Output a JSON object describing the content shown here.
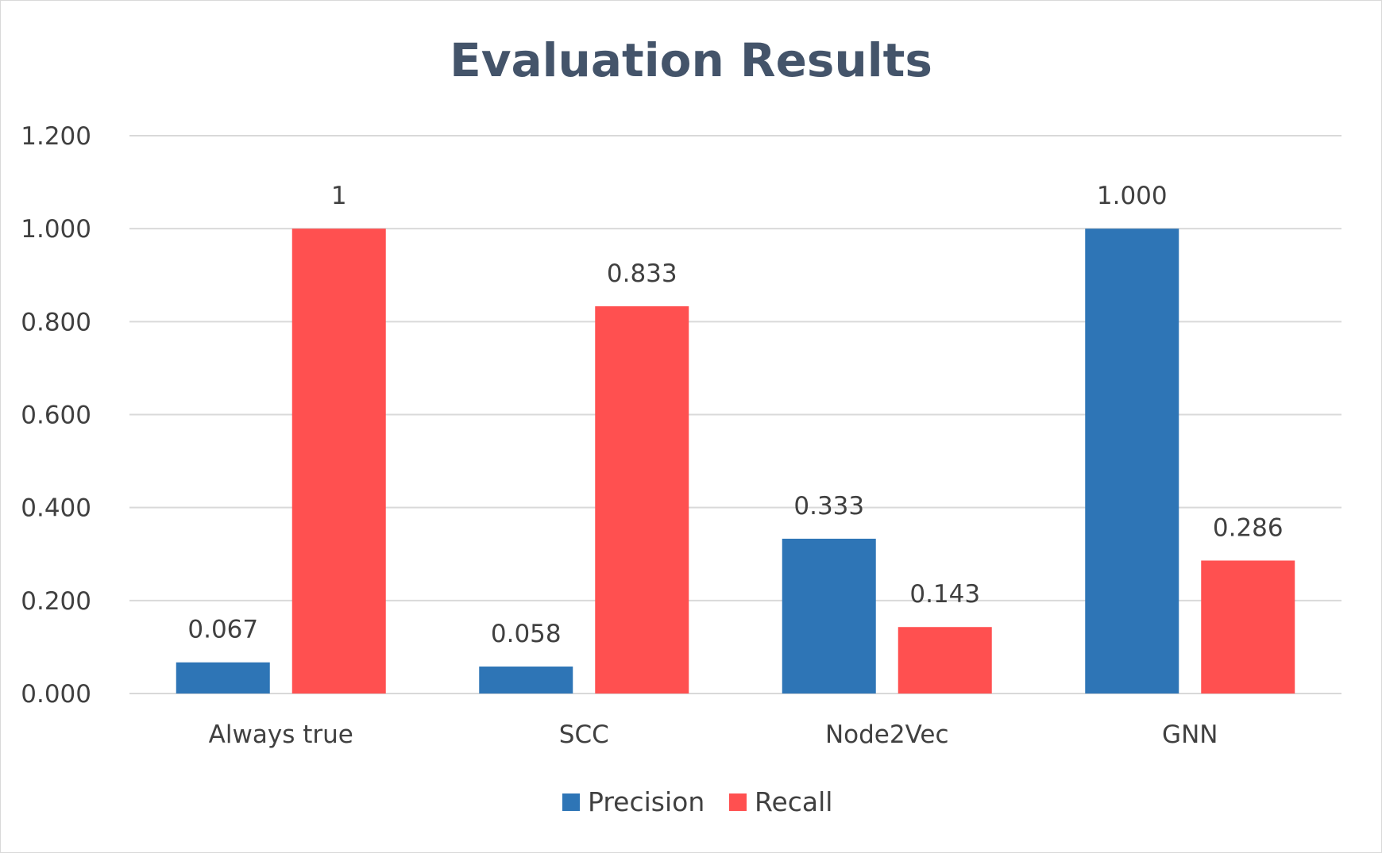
{
  "colors": {
    "precision": "#2e75b6",
    "recall": "#ff5050",
    "gridline": "#d9d9d9",
    "title": "#44546a",
    "text": "#404040"
  },
  "chart_data": {
    "type": "bar",
    "title": "Evaluation Results",
    "xlabel": "",
    "ylabel": "",
    "categories": [
      "Always true",
      "SCC",
      "Node2Vec",
      "GNN"
    ],
    "series": [
      {
        "name": "Precision",
        "values": [
          0.067,
          0.058,
          0.333,
          1.0
        ],
        "labels": [
          "0.067",
          "0.058",
          "0.333",
          "1.000"
        ]
      },
      {
        "name": "Recall",
        "values": [
          1,
          0.833,
          0.143,
          0.286
        ],
        "labels": [
          "1",
          "0.833",
          "0.143",
          "0.286"
        ]
      }
    ],
    "ylim": [
      0,
      1.2
    ],
    "yticks": [
      0,
      0.2,
      0.4,
      0.6,
      0.8,
      1.0,
      1.2
    ],
    "ytick_labels": [
      "0.000",
      "0.200",
      "0.400",
      "0.600",
      "0.800",
      "1.000",
      "1.200"
    ],
    "grid": true,
    "legend_position": "bottom"
  }
}
